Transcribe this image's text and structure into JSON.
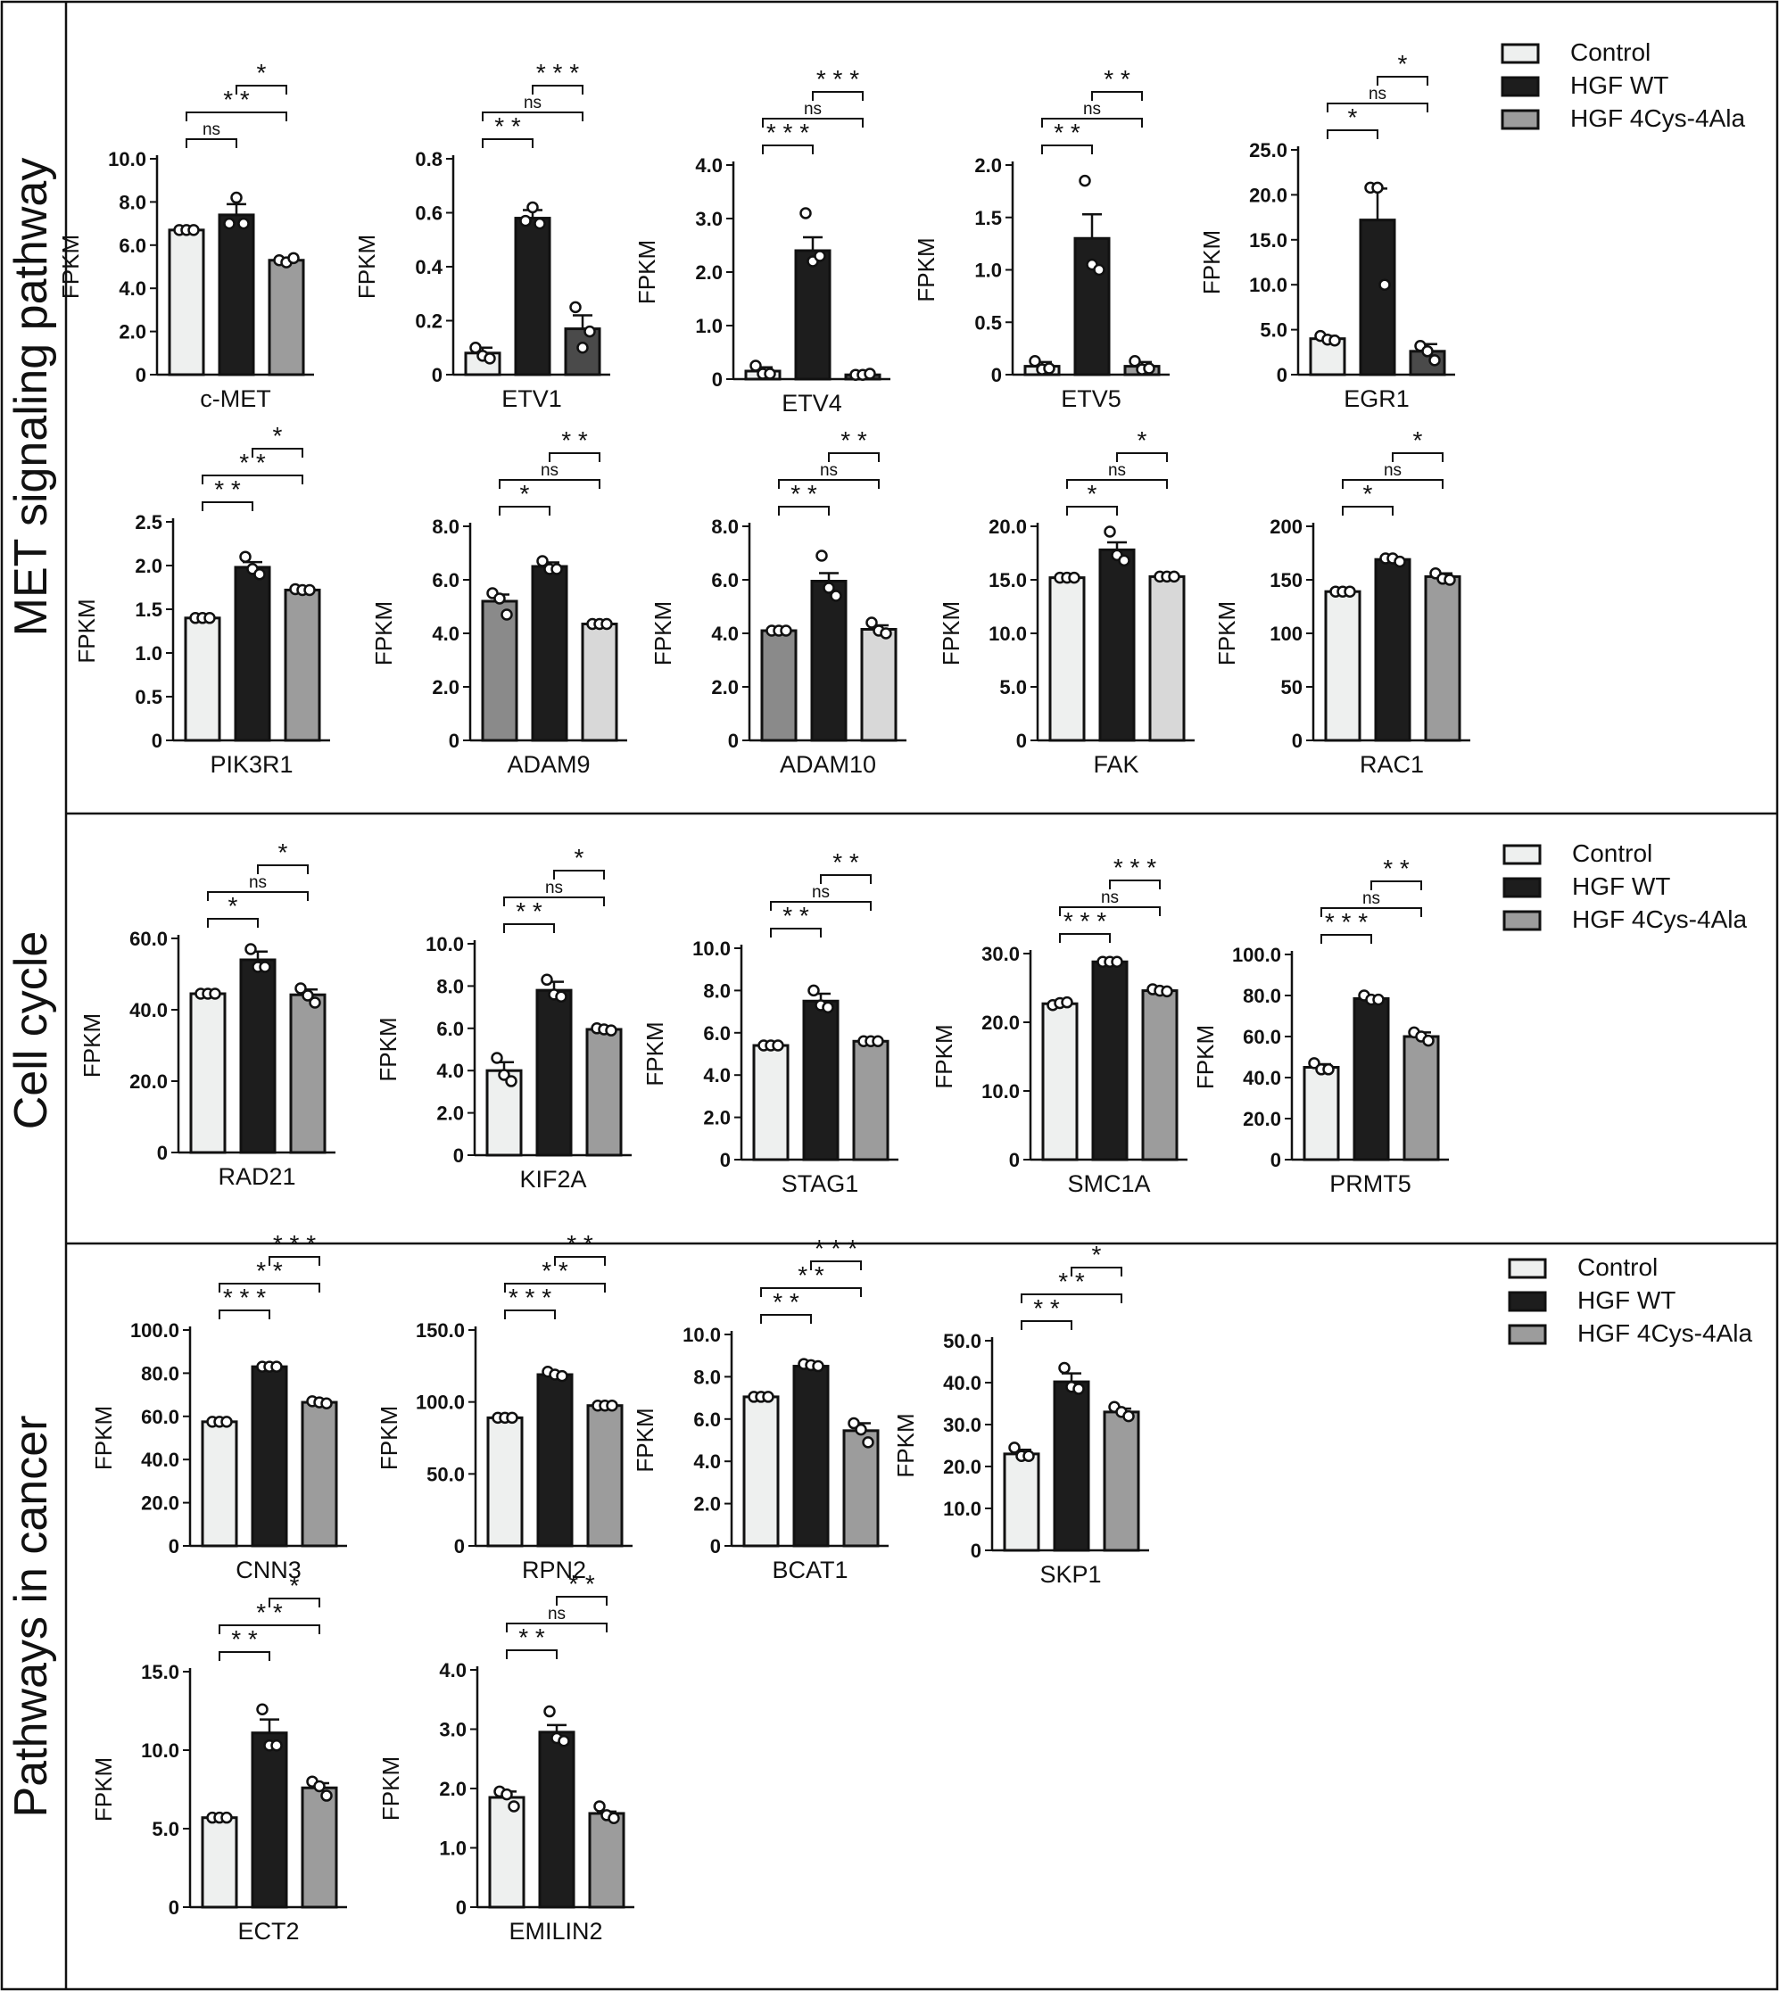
{
  "colors": {
    "control": "#eef0ef",
    "hgf_wt": "#1d1d1d",
    "hgf_4cys_4ala": "#9c9c9c",
    "stroke": "#111111"
  },
  "legend": [
    "Control",
    "HGF WT",
    "HGF 4Cys-4Ala"
  ],
  "sections": [
    {
      "name": "MET signaling pathway"
    },
    {
      "name": "Cell cycle"
    },
    {
      "name": "Pathways in cancer"
    }
  ],
  "chart_data": [
    {
      "type": "bar",
      "title": "c-MET",
      "ylabel": "FPKM",
      "categories": [
        "Control",
        "HGF WT",
        "HGF 4Cys-4Ala"
      ],
      "values": [
        6.7,
        7.4,
        5.3
      ],
      "errors": [
        0.05,
        0.5,
        0.1
      ],
      "points": [
        [
          6.7,
          6.7,
          6.7
        ],
        [
          7.0,
          8.2,
          7.0
        ],
        [
          5.3,
          5.2,
          5.4
        ]
      ],
      "ylim": [
        0,
        10
      ],
      "yticks": [
        "10.0",
        "8.0",
        "6.0",
        "4.0",
        "2.0",
        "0"
      ],
      "fills": [
        "#eef0ef",
        "#1d1d1d",
        "#9c9c9c"
      ],
      "significance": [
        "ns",
        "* *",
        "*"
      ]
    },
    {
      "type": "bar",
      "title": "ETV1",
      "ylabel": "FPKM",
      "categories": [
        "Control",
        "HGF WT",
        "HGF 4Cys-4Ala"
      ],
      "values": [
        0.08,
        0.58,
        0.17
      ],
      "errors": [
        0.02,
        0.03,
        0.05
      ],
      "points": [
        [
          0.1,
          0.07,
          0.06
        ],
        [
          0.57,
          0.62,
          0.56
        ],
        [
          0.25,
          0.1,
          0.16
        ]
      ],
      "ylim": [
        0,
        0.8
      ],
      "yticks": [
        "0.8",
        "0.6",
        "0.4",
        "0.2",
        "0"
      ],
      "fills": [
        "#eef0ef",
        "#1d1d1d",
        "#4a4a4a"
      ],
      "significance": [
        "* *",
        "ns",
        "* * *"
      ]
    },
    {
      "type": "bar",
      "title": "ETV4",
      "ylabel": "FPKM",
      "categories": [
        "Control",
        "HGF WT",
        "HGF 4Cys-4Ala"
      ],
      "values": [
        0.15,
        2.4,
        0.08
      ],
      "errors": [
        0.07,
        0.25,
        0.02
      ],
      "points": [
        [
          0.25,
          0.1,
          0.1
        ],
        [
          3.1,
          2.2,
          2.3
        ],
        [
          0.08,
          0.08,
          0.1
        ]
      ],
      "ylim": [
        0,
        4
      ],
      "yticks": [
        "4.0",
        "3.0",
        "2.0",
        "1.0",
        "0"
      ],
      "fills": [
        "#eef0ef",
        "#1d1d1d",
        "#4a4a4a"
      ],
      "significance": [
        "* * *",
        "ns",
        "* * *"
      ]
    },
    {
      "type": "bar",
      "title": "ETV5",
      "ylabel": "FPKM",
      "categories": [
        "Control",
        "HGF WT",
        "HGF 4Cys-4Ala"
      ],
      "values": [
        0.08,
        1.3,
        0.08
      ],
      "errors": [
        0.04,
        0.23,
        0.04
      ],
      "points": [
        [
          0.13,
          0.05,
          0.06
        ],
        [
          1.85,
          1.05,
          1.0
        ],
        [
          0.13,
          0.05,
          0.06
        ]
      ],
      "ylim": [
        0,
        2
      ],
      "yticks": [
        "2.0",
        "1.5",
        "1.0",
        "0.5",
        "0"
      ],
      "fills": [
        "#eef0ef",
        "#1d1d1d",
        "#9c9c9c"
      ],
      "significance": [
        "* *",
        "ns",
        "* *"
      ]
    },
    {
      "type": "bar",
      "title": "EGR1",
      "ylabel": "FPKM",
      "categories": [
        "Control",
        "HGF WT",
        "HGF 4Cys-4Ala"
      ],
      "values": [
        4.0,
        17.2,
        2.6
      ],
      "errors": [
        0.3,
        3.5,
        0.8
      ],
      "points": [
        [
          4.3,
          3.9,
          3.8
        ],
        [
          20.8,
          20.8,
          10.0
        ],
        [
          3.2,
          2.6,
          1.6
        ]
      ],
      "ylim": [
        0,
        25
      ],
      "yticks": [
        "25.0",
        "20.0",
        "15.0",
        "10.0",
        "5.0",
        "0"
      ],
      "fills": [
        "#eef0ef",
        "#1d1d1d",
        "#4a4a4a"
      ],
      "significance": [
        "*",
        "ns",
        "*"
      ]
    },
    {
      "type": "bar",
      "title": "PIK3R1",
      "ylabel": "FPKM",
      "categories": [
        "Control",
        "HGF WT",
        "HGF 4Cys-4Ala"
      ],
      "values": [
        1.4,
        1.98,
        1.72
      ],
      "errors": [
        0.02,
        0.06,
        0.02
      ],
      "points": [
        [
          1.4,
          1.4,
          1.4
        ],
        [
          2.1,
          1.96,
          1.9
        ],
        [
          1.73,
          1.72,
          1.72
        ]
      ],
      "ylim": [
        0,
        2.5
      ],
      "yticks": [
        "2.5",
        "2.0",
        "1.5",
        "1.0",
        "0.5",
        "0"
      ],
      "fills": [
        "#eef0ef",
        "#1d1d1d",
        "#9c9c9c"
      ],
      "significance": [
        "* *",
        "* *",
        "*"
      ]
    },
    {
      "type": "bar",
      "title": "ADAM9",
      "ylabel": "FPKM",
      "categories": [
        "Control",
        "HGF WT",
        "HGF 4Cys-4Ala"
      ],
      "values": [
        5.2,
        6.5,
        4.35
      ],
      "errors": [
        0.25,
        0.15,
        0.03
      ],
      "points": [
        [
          5.5,
          5.3,
          4.7
        ],
        [
          6.7,
          6.4,
          6.4
        ],
        [
          4.35,
          4.35,
          4.35
        ]
      ],
      "ylim": [
        0,
        8
      ],
      "yticks": [
        "8.0",
        "6.0",
        "4.0",
        "2.0",
        "0"
      ],
      "fills": [
        "#8a8a8a",
        "#1d1d1d",
        "#d8d8d8"
      ],
      "significance": [
        "*",
        "ns",
        "* *"
      ]
    },
    {
      "type": "bar",
      "title": "ADAM10",
      "ylabel": "FPKM",
      "categories": [
        "Control",
        "HGF WT",
        "HGF 4Cys-4Ala"
      ],
      "values": [
        4.1,
        5.95,
        4.15
      ],
      "errors": [
        0.02,
        0.3,
        0.15
      ],
      "points": [
        [
          4.1,
          4.1,
          4.1
        ],
        [
          6.9,
          5.7,
          5.4
        ],
        [
          4.4,
          4.1,
          4.0
        ]
      ],
      "ylim": [
        0,
        8
      ],
      "yticks": [
        "8.0",
        "6.0",
        "4.0",
        "2.0",
        "0"
      ],
      "fills": [
        "#8a8a8a",
        "#1d1d1d",
        "#d8d8d8"
      ],
      "significance": [
        "* *",
        "ns",
        "* *"
      ]
    },
    {
      "type": "bar",
      "title": "FAK",
      "ylabel": "FPKM",
      "categories": [
        "Control",
        "HGF WT",
        "HGF 4Cys-4Ala"
      ],
      "values": [
        15.2,
        17.8,
        15.3
      ],
      "errors": [
        0.1,
        0.7,
        0.1
      ],
      "points": [
        [
          15.2,
          15.2,
          15.2
        ],
        [
          19.5,
          17.3,
          16.8
        ],
        [
          15.3,
          15.3,
          15.3
        ]
      ],
      "ylim": [
        0,
        20
      ],
      "yticks": [
        "20.0",
        "15.0",
        "10.0",
        "5.0",
        "0"
      ],
      "fills": [
        "#eef0ef",
        "#1d1d1d",
        "#d8d8d8"
      ],
      "significance": [
        "*",
        "ns",
        "*"
      ]
    },
    {
      "type": "bar",
      "title": "RAC1",
      "ylabel": "FPKM",
      "categories": [
        "Control",
        "HGF WT",
        "HGF 4Cys-4Ala"
      ],
      "values": [
        139,
        169,
        153
      ],
      "errors": [
        1,
        2,
        3
      ],
      "points": [
        [
          139,
          139,
          139
        ],
        [
          170,
          170,
          167
        ],
        [
          156,
          151,
          150
        ]
      ],
      "ylim": [
        0,
        200
      ],
      "yticks": [
        "200",
        "150",
        "100",
        "50",
        "0"
      ],
      "fills": [
        "#eef0ef",
        "#1d1d1d",
        "#9c9c9c"
      ],
      "significance": [
        "*",
        "ns",
        "*"
      ]
    },
    {
      "type": "bar",
      "title": "RAD21",
      "ylabel": "FPKM",
      "categories": [
        "Control",
        "HGF WT",
        "HGF 4Cys-4Ala"
      ],
      "values": [
        44.5,
        54,
        44.2
      ],
      "errors": [
        0.3,
        2.3,
        1.5
      ],
      "points": [
        [
          44.5,
          44.5,
          44.5
        ],
        [
          57,
          52,
          52
        ],
        [
          46,
          44,
          42
        ]
      ],
      "ylim": [
        0,
        60
      ],
      "yticks": [
        "60.0",
        "40.0",
        "20.0",
        "0"
      ],
      "fills": [
        "#eef0ef",
        "#1d1d1d",
        "#9c9c9c"
      ],
      "significance": [
        "*",
        "ns",
        "*"
      ]
    },
    {
      "type": "bar",
      "title": "KIF2A",
      "ylabel": "FPKM",
      "categories": [
        "Control",
        "HGF WT",
        "HGF 4Cys-4Ala"
      ],
      "values": [
        4.0,
        7.8,
        5.95
      ],
      "errors": [
        0.4,
        0.4,
        0.05
      ],
      "points": [
        [
          4.6,
          3.8,
          3.5
        ],
        [
          8.3,
          7.6,
          7.5
        ],
        [
          6.0,
          5.95,
          5.9
        ]
      ],
      "ylim": [
        0,
        10
      ],
      "yticks": [
        "10.0",
        "8.0",
        "6.0",
        "4.0",
        "2.0",
        "0"
      ],
      "fills": [
        "#eef0ef",
        "#1d1d1d",
        "#9c9c9c"
      ],
      "significance": [
        "* *",
        "ns",
        "*"
      ]
    },
    {
      "type": "bar",
      "title": "STAG1",
      "ylabel": "FPKM",
      "categories": [
        "Control",
        "HGF WT",
        "HGF 4Cys-4Ala"
      ],
      "values": [
        5.4,
        7.5,
        5.6
      ],
      "errors": [
        0.05,
        0.35,
        0.05
      ],
      "points": [
        [
          5.4,
          5.4,
          5.4
        ],
        [
          8.0,
          7.3,
          7.2
        ],
        [
          5.6,
          5.6,
          5.6
        ]
      ],
      "ylim": [
        0,
        10
      ],
      "yticks": [
        "10.0",
        "8.0",
        "6.0",
        "4.0",
        "2.0",
        "0"
      ],
      "fills": [
        "#eef0ef",
        "#1d1d1d",
        "#9c9c9c"
      ],
      "significance": [
        "* *",
        "ns",
        "* *"
      ]
    },
    {
      "type": "bar",
      "title": "SMC1A",
      "ylabel": "FPKM",
      "categories": [
        "Control",
        "HGF WT",
        "HGF 4Cys-4Ala"
      ],
      "values": [
        22.7,
        28.8,
        24.6
      ],
      "errors": [
        0.3,
        0.1,
        0.2
      ],
      "points": [
        [
          22.5,
          22.8,
          22.9
        ],
        [
          28.8,
          28.8,
          28.8
        ],
        [
          24.8,
          24.6,
          24.5
        ]
      ],
      "ylim": [
        0,
        30
      ],
      "yticks": [
        "30.0",
        "20.0",
        "10.0",
        "0"
      ],
      "fills": [
        "#eef0ef",
        "#1d1d1d",
        "#9c9c9c"
      ],
      "significance": [
        "* * *",
        "ns",
        "* * *"
      ]
    },
    {
      "type": "bar",
      "title": "PRMT5",
      "ylabel": "FPKM",
      "categories": [
        "Control",
        "HGF WT",
        "HGF 4Cys-4Ala"
      ],
      "values": [
        45,
        78.5,
        60
      ],
      "errors": [
        1.5,
        1,
        2
      ],
      "points": [
        [
          47,
          44,
          44
        ],
        [
          80,
          78,
          78
        ],
        [
          62,
          60,
          58
        ]
      ],
      "ylim": [
        0,
        100
      ],
      "yticks": [
        "100.0",
        "80.0",
        "60.0",
        "40.0",
        "20.0",
        "0"
      ],
      "fills": [
        "#eef0ef",
        "#1d1d1d",
        "#9c9c9c"
      ],
      "significance": [
        "* * *",
        "ns",
        "* *"
      ]
    },
    {
      "type": "bar",
      "title": "CNN3",
      "ylabel": "FPKM",
      "categories": [
        "Control",
        "HGF WT",
        "HGF 4Cys-4Ala"
      ],
      "values": [
        57.5,
        83,
        66.5
      ],
      "errors": [
        0.2,
        0.2,
        0.8
      ],
      "points": [
        [
          57.5,
          57.5,
          57.5
        ],
        [
          83,
          83,
          83
        ],
        [
          67,
          66.5,
          66
        ]
      ],
      "ylim": [
        0,
        100
      ],
      "yticks": [
        "100.0",
        "80.0",
        "60.0",
        "40.0",
        "20.0",
        "0"
      ],
      "fills": [
        "#eef0ef",
        "#1d1d1d",
        "#9c9c9c"
      ],
      "significance": [
        "* * *",
        "* *",
        "* * *"
      ]
    },
    {
      "type": "bar",
      "title": "RPN2",
      "ylabel": "FPKM",
      "categories": [
        "Control",
        "HGF WT",
        "HGF 4Cys-4Ala"
      ],
      "values": [
        89,
        119,
        97.5
      ],
      "errors": [
        0.5,
        1.5,
        0.5
      ],
      "points": [
        [
          89,
          89,
          89
        ],
        [
          121,
          119,
          118
        ],
        [
          97.5,
          97.5,
          97.5
        ]
      ],
      "ylim": [
        0,
        150
      ],
      "yticks": [
        "150.0",
        "100.0",
        "50.0",
        "0"
      ],
      "fills": [
        "#eef0ef",
        "#1d1d1d",
        "#9c9c9c"
      ],
      "significance": [
        "* * *",
        "* *",
        "* *"
      ]
    },
    {
      "type": "bar",
      "title": "BCAT1",
      "ylabel": "FPKM",
      "categories": [
        "Control",
        "HGF WT",
        "HGF 4Cys-4Ala"
      ],
      "values": [
        7.05,
        8.5,
        5.45
      ],
      "errors": [
        0.05,
        0.1,
        0.35
      ],
      "points": [
        [
          7.05,
          7.05,
          7.05
        ],
        [
          8.6,
          8.55,
          8.5
        ],
        [
          5.8,
          5.5,
          4.9
        ]
      ],
      "ylim": [
        0,
        10
      ],
      "yticks": [
        "10.0",
        "8.0",
        "6.0",
        "4.0",
        "2.0",
        "0"
      ],
      "fills": [
        "#eef0ef",
        "#1d1d1d",
        "#9c9c9c"
      ],
      "significance": [
        "* *",
        "* *",
        "* * *"
      ]
    },
    {
      "type": "bar",
      "title": "SKP1",
      "ylabel": "FPKM",
      "categories": [
        "Control",
        "HGF WT",
        "HGF 4Cys-4Ala"
      ],
      "values": [
        23,
        40.2,
        33
      ],
      "errors": [
        1,
        2,
        0.8
      ],
      "points": [
        [
          24.5,
          22.5,
          22.5
        ],
        [
          43.5,
          39,
          38.5
        ],
        [
          34.2,
          33,
          32
        ]
      ],
      "ylim": [
        0,
        50
      ],
      "yticks": [
        "50.0",
        "40.0",
        "30.0",
        "20.0",
        "10.0",
        "0"
      ],
      "fills": [
        "#eef0ef",
        "#1d1d1d",
        "#9c9c9c"
      ],
      "significance": [
        "* *",
        "* *",
        "*"
      ]
    },
    {
      "type": "bar",
      "title": "ECT2",
      "ylabel": "FPKM",
      "categories": [
        "Control",
        "HGF WT",
        "HGF 4Cys-4Ala"
      ],
      "values": [
        5.7,
        11.1,
        7.6
      ],
      "errors": [
        0.05,
        0.85,
        0.3
      ],
      "points": [
        [
          5.7,
          5.7,
          5.7
        ],
        [
          12.6,
          10.3,
          10.3
        ],
        [
          8.0,
          7.7,
          7.1
        ]
      ],
      "ylim": [
        0,
        15
      ],
      "yticks": [
        "15.0",
        "10.0",
        "5.0",
        "0"
      ],
      "fills": [
        "#eef0ef",
        "#1d1d1d",
        "#9c9c9c"
      ],
      "significance": [
        "* *",
        "* *",
        "*"
      ]
    },
    {
      "type": "bar",
      "title": "EMILIN2",
      "ylabel": "FPKM",
      "categories": [
        "Control",
        "HGF WT",
        "HGF 4Cys-4Ala"
      ],
      "values": [
        1.85,
        2.95,
        1.58
      ],
      "errors": [
        0.1,
        0.12,
        0.03
      ],
      "points": [
        [
          1.95,
          1.9,
          1.7
        ],
        [
          3.3,
          2.85,
          2.8
        ],
        [
          1.7,
          1.55,
          1.5
        ]
      ],
      "ylim": [
        0,
        4
      ],
      "yticks": [
        "4.0",
        "3.0",
        "2.0",
        "1.0",
        "0"
      ],
      "fills": [
        "#eef0ef",
        "#1d1d1d",
        "#9c9c9c"
      ],
      "significance": [
        "* *",
        "ns",
        "* *"
      ]
    }
  ]
}
